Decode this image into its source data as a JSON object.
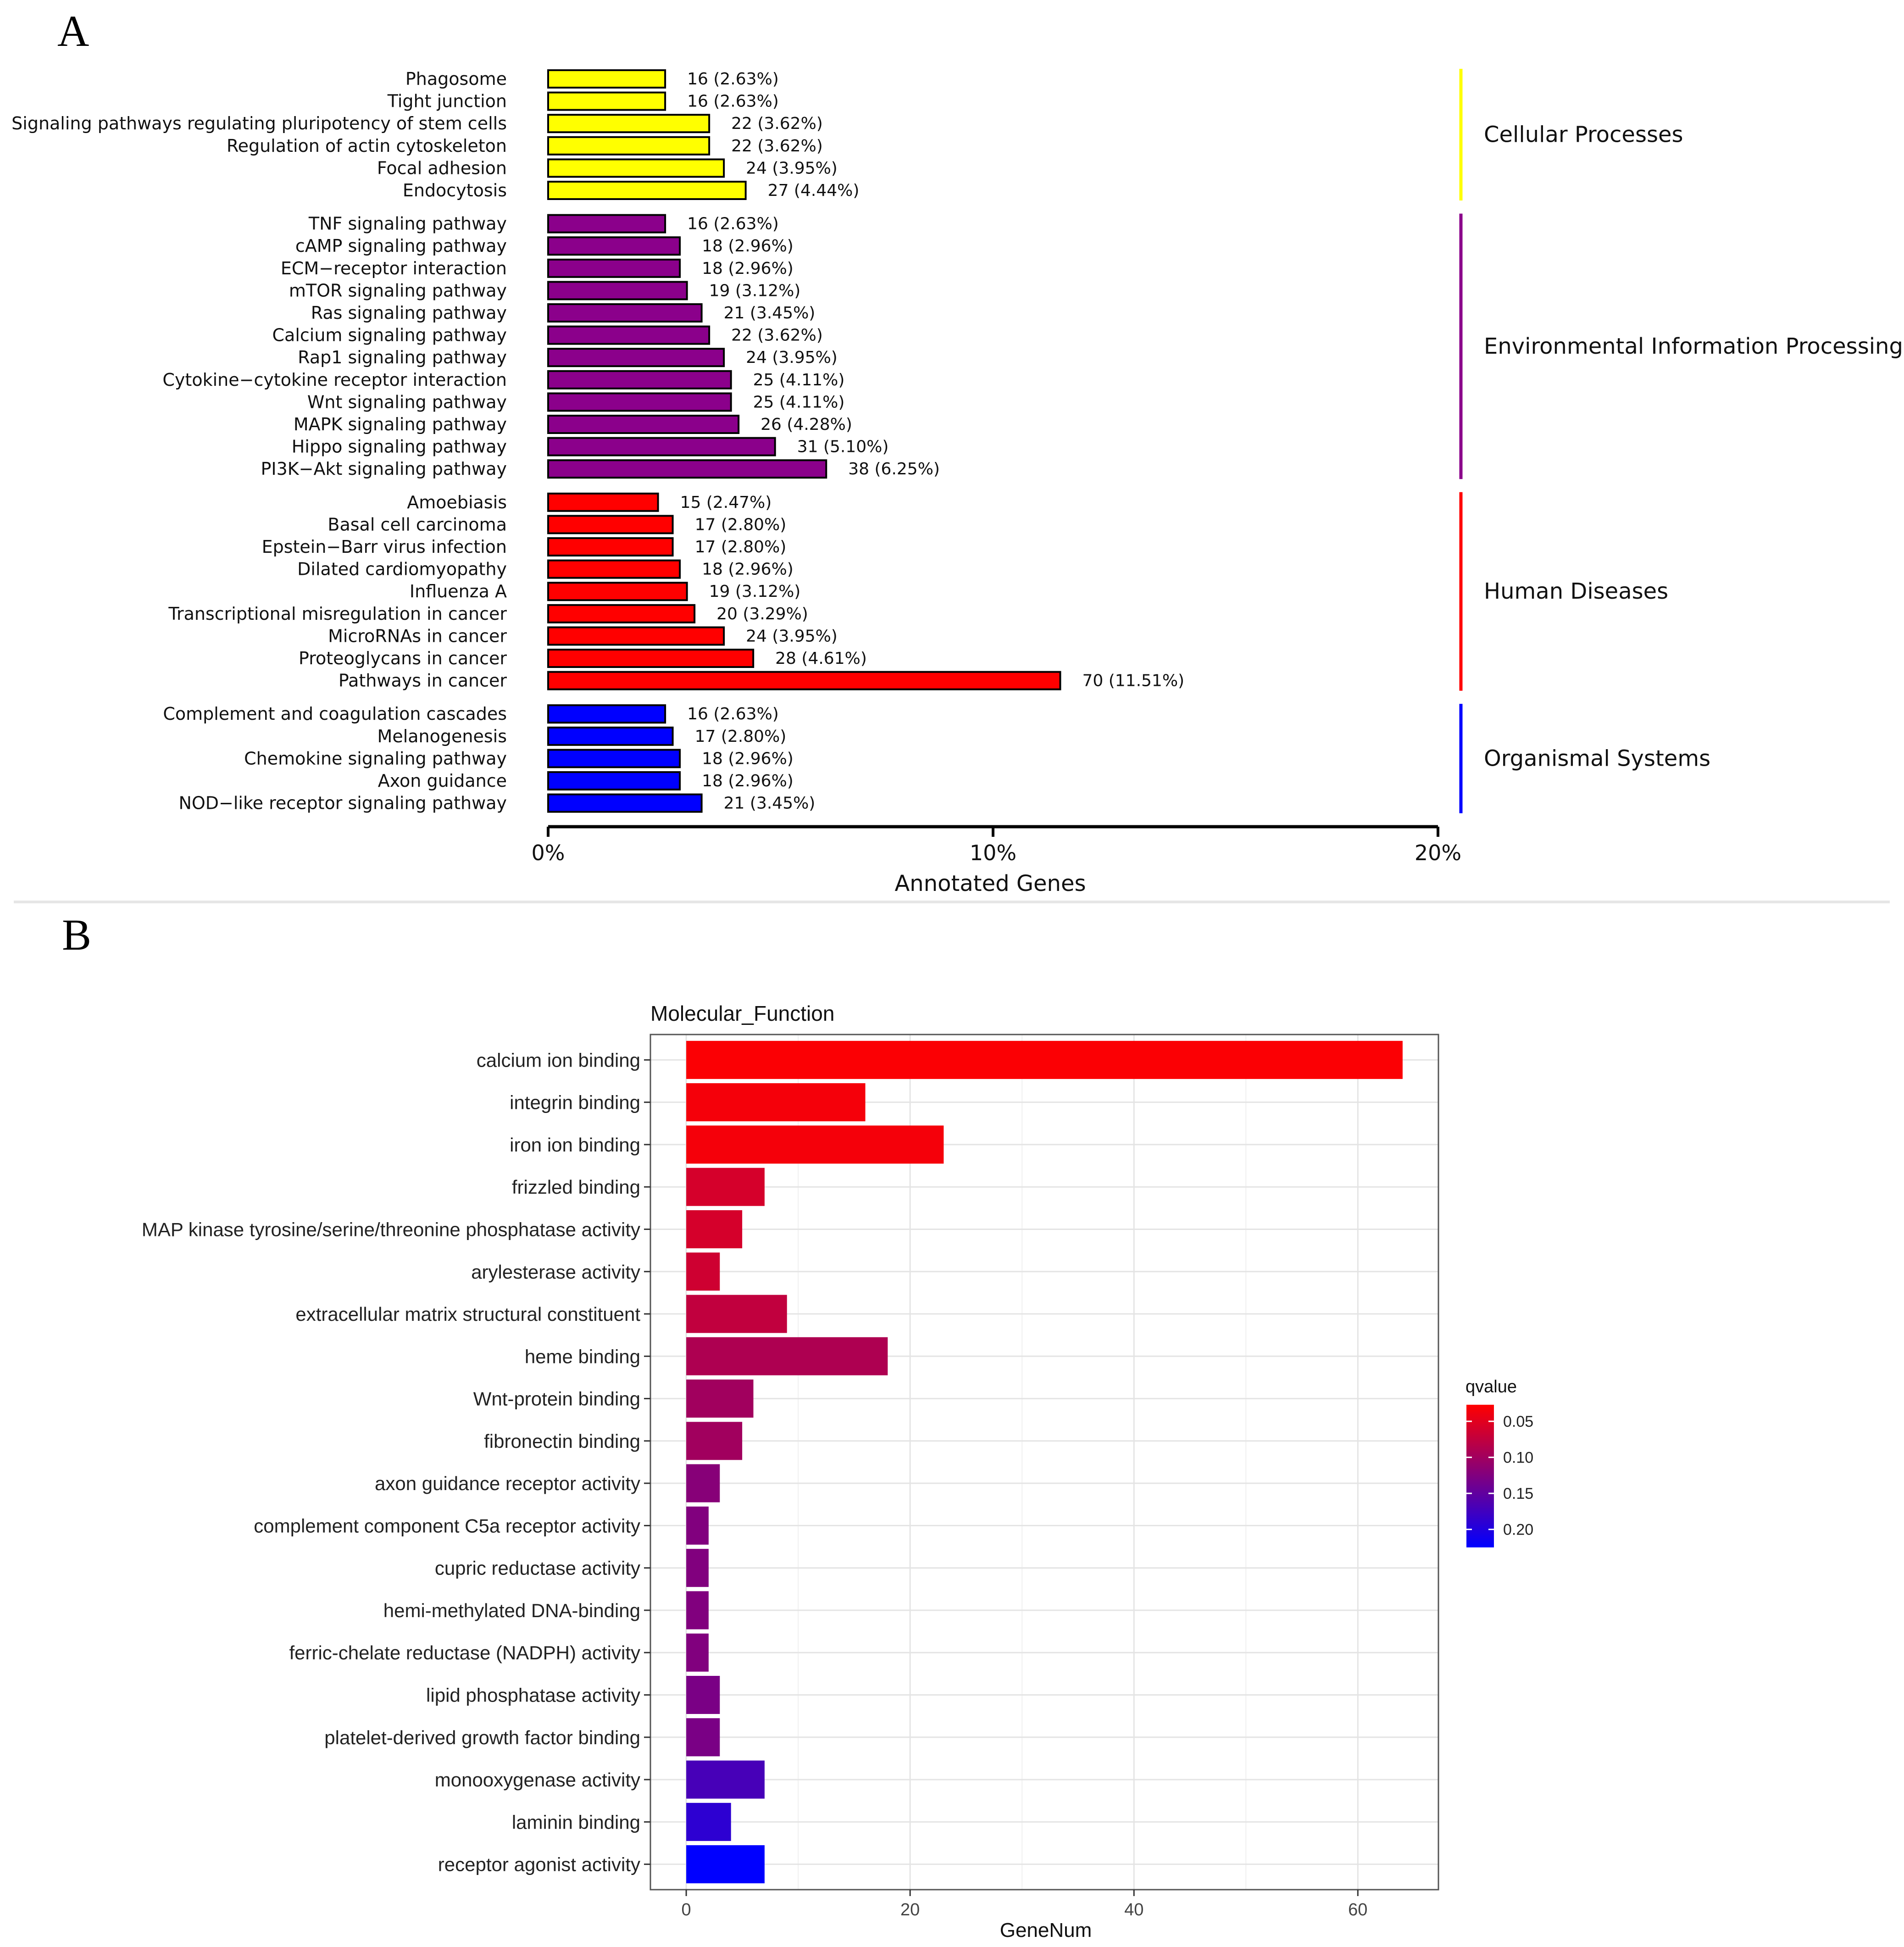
{
  "panel_a_letter": "A",
  "panel_b_letter": "B",
  "chart_data": [
    {
      "type": "bar",
      "orientation": "horizontal",
      "title": "",
      "xlabel": "Annotated Genes",
      "ylabel": "",
      "xlim": [
        0,
        20
      ],
      "x_ticks": [
        "0%",
        "10%",
        "20%"
      ],
      "groups": [
        {
          "name": "Cellular Processes",
          "color": "#ffff00",
          "items": [
            {
              "label": "Phagosome",
              "value": 2.63,
              "text": "16 (2.63%)"
            },
            {
              "label": "Tight junction",
              "value": 2.63,
              "text": "16 (2.63%)"
            },
            {
              "label": "Signaling pathways regulating pluripotency of stem cells",
              "value": 3.62,
              "text": "22 (3.62%)"
            },
            {
              "label": "Regulation of actin cytoskeleton",
              "value": 3.62,
              "text": "22 (3.62%)"
            },
            {
              "label": "Focal adhesion",
              "value": 3.95,
              "text": "24 (3.95%)"
            },
            {
              "label": "Endocytosis",
              "value": 4.44,
              "text": "27 (4.44%)"
            }
          ]
        },
        {
          "name": "Environmental Information Processing",
          "color": "#8b008b",
          "items": [
            {
              "label": "TNF signaling pathway",
              "value": 2.63,
              "text": "16 (2.63%)"
            },
            {
              "label": "cAMP signaling pathway",
              "value": 2.96,
              "text": "18 (2.96%)"
            },
            {
              "label": "ECM−receptor interaction",
              "value": 2.96,
              "text": "18 (2.96%)"
            },
            {
              "label": "mTOR signaling pathway",
              "value": 3.12,
              "text": "19 (3.12%)"
            },
            {
              "label": "Ras signaling pathway",
              "value": 3.45,
              "text": "21 (3.45%)"
            },
            {
              "label": "Calcium signaling pathway",
              "value": 3.62,
              "text": "22 (3.62%)"
            },
            {
              "label": "Rap1 signaling pathway",
              "value": 3.95,
              "text": "24 (3.95%)"
            },
            {
              "label": "Cytokine−cytokine receptor interaction",
              "value": 4.11,
              "text": "25 (4.11%)"
            },
            {
              "label": "Wnt signaling pathway",
              "value": 4.11,
              "text": "25 (4.11%)"
            },
            {
              "label": "MAPK signaling pathway",
              "value": 4.28,
              "text": "26 (4.28%)"
            },
            {
              "label": "Hippo signaling pathway",
              "value": 5.1,
              "text": "31 (5.10%)"
            },
            {
              "label": "PI3K−Akt signaling pathway",
              "value": 6.25,
              "text": "38 (6.25%)"
            }
          ]
        },
        {
          "name": "Human Diseases",
          "color": "#ff0000",
          "items": [
            {
              "label": "Amoebiasis",
              "value": 2.47,
              "text": "15 (2.47%)"
            },
            {
              "label": "Basal cell carcinoma",
              "value": 2.8,
              "text": "17 (2.80%)"
            },
            {
              "label": "Epstein−Barr virus infection",
              "value": 2.8,
              "text": "17 (2.80%)"
            },
            {
              "label": "Dilated cardiomyopathy",
              "value": 2.96,
              "text": "18 (2.96%)"
            },
            {
              "label": "Influenza A",
              "value": 3.12,
              "text": "19 (3.12%)"
            },
            {
              "label": "Transcriptional misregulation in cancer",
              "value": 3.29,
              "text": "20 (3.29%)"
            },
            {
              "label": "MicroRNAs in cancer",
              "value": 3.95,
              "text": "24 (3.95%)"
            },
            {
              "label": "Proteoglycans in cancer",
              "value": 4.61,
              "text": "28 (4.61%)"
            },
            {
              "label": "Pathways in cancer",
              "value": 11.51,
              "text": "70 (11.51%)"
            }
          ]
        },
        {
          "name": "Organismal Systems",
          "color": "#0000ff",
          "items": [
            {
              "label": "Complement and coagulation cascades",
              "value": 2.63,
              "text": "16 (2.63%)"
            },
            {
              "label": "Melanogenesis",
              "value": 2.8,
              "text": "17 (2.80%)"
            },
            {
              "label": "Chemokine signaling pathway",
              "value": 2.96,
              "text": "18 (2.96%)"
            },
            {
              "label": "Axon guidance",
              "value": 2.96,
              "text": "18 (2.96%)"
            },
            {
              "label": "NOD−like receptor signaling pathway",
              "value": 3.45,
              "text": "21 (3.45%)"
            }
          ]
        }
      ]
    },
    {
      "type": "bar",
      "orientation": "horizontal",
      "title": "Molecular_Function",
      "xlabel": "GeneNum",
      "ylabel": "",
      "xlim": [
        -3.2,
        67.2
      ],
      "x_ticks": [
        0,
        20,
        40,
        60
      ],
      "grid": true,
      "legend": {
        "title": "qvalue",
        "position": "right",
        "range": [
          0.027,
          0.225
        ],
        "ticks": [
          "0.05",
          "0.10",
          "0.15",
          "0.20"
        ],
        "tick_values": [
          0.05,
          0.1,
          0.15,
          0.2
        ],
        "color_low": "#ff0000",
        "color_high": "#0000ff"
      },
      "categories": [
        "calcium ion binding",
        "integrin binding",
        "iron ion binding",
        "frizzled binding",
        "MAP kinase tyrosine/serine/threonine phosphatase activity",
        "arylesterase activity",
        "extracellular matrix structural constituent",
        "heme binding",
        "Wnt-protein binding",
        "fibronectin binding",
        "axon guidance receptor activity",
        "complement component C5a receptor activity",
        "cupric reductase activity",
        "hemi-methylated DNA-binding",
        "ferric-chelate reductase (NADPH) activity",
        "lipid phosphatase activity",
        "platelet-derived growth factor binding",
        "monooxygenase activity",
        "laminin binding",
        "receptor agonist activity"
      ],
      "values": [
        64,
        16,
        23,
        7,
        5,
        3,
        9,
        18,
        6,
        5,
        3,
        2,
        2,
        2,
        2,
        3,
        3,
        7,
        4,
        7
      ],
      "qvalues": [
        0.03,
        0.035,
        0.035,
        0.06,
        0.06,
        0.065,
        0.075,
        0.09,
        0.1,
        0.1,
        0.12,
        0.125,
        0.125,
        0.125,
        0.125,
        0.13,
        0.13,
        0.17,
        0.19,
        0.225
      ]
    }
  ]
}
